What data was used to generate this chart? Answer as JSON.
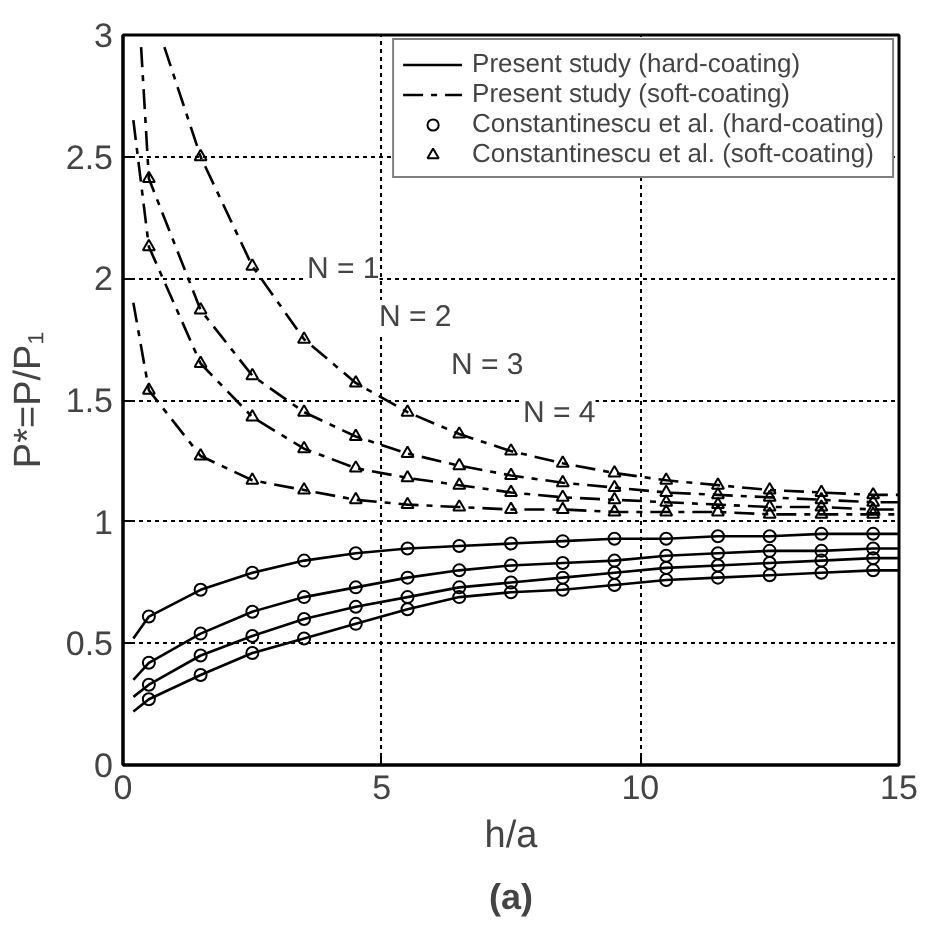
{
  "chart_data": {
    "type": "line",
    "xlabel": "h/a",
    "ylabel": "P*=P/P₁",
    "xlim": [
      0,
      15
    ],
    "ylim": [
      0,
      3
    ],
    "xticks": [
      0,
      5,
      10,
      15
    ],
    "yticks": [
      0,
      0.5,
      1,
      1.5,
      2,
      2.5,
      3
    ],
    "grid": true,
    "legend": "top right",
    "series": [
      {
        "name": "Present study (hard-coating)",
        "color": "#000000",
        "line_style": "solid",
        "x": [
          0.2,
          0.5,
          1.5,
          2.5,
          3.5,
          4.5,
          5.5,
          6.5,
          7.5,
          8.5,
          9.5,
          10.5,
          11.5,
          12.5,
          13.5,
          14.5,
          15
        ],
        "values": [
          0.52,
          0.61,
          0.72,
          0.79,
          0.84,
          0.87,
          0.89,
          0.9,
          0.91,
          0.92,
          0.93,
          0.93,
          0.94,
          0.94,
          0.95,
          0.95,
          0.95
        ]
      },
      {
        "color": "#000000",
        "line_style": "solid",
        "x": [
          0.2,
          0.5,
          1.5,
          2.5,
          3.5,
          4.5,
          5.5,
          6.5,
          7.5,
          8.5,
          9.5,
          10.5,
          11.5,
          12.5,
          13.5,
          14.5,
          15
        ],
        "values": [
          0.35,
          0.42,
          0.54,
          0.63,
          0.69,
          0.73,
          0.77,
          0.8,
          0.82,
          0.83,
          0.84,
          0.86,
          0.87,
          0.88,
          0.88,
          0.89,
          0.89
        ]
      },
      {
        "color": "#000000",
        "line_style": "solid",
        "x": [
          0.2,
          0.5,
          1.5,
          2.5,
          3.5,
          4.5,
          5.5,
          6.5,
          7.5,
          8.5,
          9.5,
          10.5,
          11.5,
          12.5,
          13.5,
          14.5,
          15
        ],
        "values": [
          0.28,
          0.33,
          0.45,
          0.53,
          0.6,
          0.65,
          0.69,
          0.73,
          0.75,
          0.77,
          0.79,
          0.81,
          0.82,
          0.83,
          0.84,
          0.85,
          0.85
        ]
      },
      {
        "color": "#000000",
        "line_style": "solid",
        "x": [
          0.2,
          0.5,
          1.5,
          2.5,
          3.5,
          4.5,
          5.5,
          6.5,
          7.5,
          8.5,
          9.5,
          10.5,
          11.5,
          12.5,
          13.5,
          14.5,
          15
        ],
        "values": [
          0.22,
          0.27,
          0.37,
          0.46,
          0.52,
          0.58,
          0.64,
          0.69,
          0.71,
          0.72,
          0.74,
          0.76,
          0.77,
          0.78,
          0.79,
          0.8,
          0.8
        ]
      },
      {
        "name": "Present study (soft-coating)",
        "color": "#000000",
        "line_style": "dashed",
        "x": [
          0.2,
          0.5,
          1.5,
          2.5,
          3.5,
          4.5,
          5.5,
          6.5,
          7.5,
          8.5,
          9.5,
          10.5,
          11.5,
          12.5,
          13.5,
          14.5,
          15
        ],
        "values": [
          1.9,
          1.54,
          1.27,
          1.17,
          1.13,
          1.09,
          1.07,
          1.06,
          1.05,
          1.05,
          1.04,
          1.04,
          1.04,
          1.03,
          1.03,
          1.03,
          1.03
        ]
      },
      {
        "color": "#000000",
        "line_style": "dashed",
        "x": [
          0.2,
          0.5,
          1.5,
          2.5,
          3.5,
          4.5,
          5.5,
          6.5,
          7.5,
          8.5,
          9.5,
          10.5,
          11.5,
          12.5,
          13.5,
          14.5,
          15
        ],
        "values": [
          2.65,
          2.13,
          1.65,
          1.43,
          1.3,
          1.22,
          1.18,
          1.15,
          1.12,
          1.1,
          1.09,
          1.08,
          1.07,
          1.06,
          1.06,
          1.05,
          1.05
        ]
      },
      {
        "color": "#000000",
        "line_style": "dashed",
        "x": [
          0.35,
          0.5,
          1.5,
          2.5,
          3.5,
          4.5,
          5.5,
          6.5,
          7.5,
          8.5,
          9.5,
          10.5,
          11.5,
          12.5,
          13.5,
          14.5,
          15
        ],
        "values": [
          2.95,
          2.41,
          1.87,
          1.6,
          1.45,
          1.35,
          1.28,
          1.23,
          1.19,
          1.16,
          1.14,
          1.12,
          1.11,
          1.1,
          1.09,
          1.08,
          1.08
        ]
      },
      {
        "color": "#000000",
        "line_style": "dashed",
        "x": [
          0.8,
          1.5,
          2.5,
          3.5,
          4.5,
          5.5,
          6.5,
          7.5,
          8.5,
          9.5,
          10.5,
          11.5,
          12.5,
          13.5,
          14.5,
          15
        ],
        "values": [
          2.95,
          2.5,
          2.05,
          1.75,
          1.57,
          1.45,
          1.36,
          1.29,
          1.24,
          1.2,
          1.17,
          1.15,
          1.13,
          1.12,
          1.11,
          1.11
        ]
      },
      {
        "name": "Constantinescu et al. (hard-coating)",
        "type": "scatter",
        "marker": "circle",
        "color": "#000000",
        "x": [
          0.5,
          1.5,
          2.5,
          3.5,
          4.5,
          5.5,
          6.5,
          7.5,
          8.5,
          9.5,
          10.5,
          11.5,
          12.5,
          13.5,
          14.5
        ],
        "values": [
          0.61,
          0.72,
          0.79,
          0.84,
          0.87,
          0.89,
          0.9,
          0.91,
          0.92,
          0.93,
          0.93,
          0.94,
          0.94,
          0.95,
          0.95
        ]
      },
      {
        "type": "scatter",
        "marker": "circle",
        "color": "#000000",
        "x": [
          0.5,
          1.5,
          2.5,
          3.5,
          4.5,
          5.5,
          6.5,
          7.5,
          8.5,
          9.5,
          10.5,
          11.5,
          12.5,
          13.5,
          14.5
        ],
        "values": [
          0.42,
          0.54,
          0.63,
          0.69,
          0.73,
          0.77,
          0.8,
          0.82,
          0.83,
          0.84,
          0.86,
          0.87,
          0.88,
          0.88,
          0.89
        ]
      },
      {
        "type": "scatter",
        "marker": "circle",
        "color": "#000000",
        "x": [
          0.5,
          1.5,
          2.5,
          3.5,
          4.5,
          5.5,
          6.5,
          7.5,
          8.5,
          9.5,
          10.5,
          11.5,
          12.5,
          13.5,
          14.5
        ],
        "values": [
          0.33,
          0.45,
          0.53,
          0.6,
          0.65,
          0.69,
          0.73,
          0.75,
          0.77,
          0.79,
          0.81,
          0.82,
          0.83,
          0.84,
          0.85
        ]
      },
      {
        "type": "scatter",
        "marker": "circle",
        "color": "#000000",
        "x": [
          0.5,
          1.5,
          2.5,
          3.5,
          4.5,
          5.5,
          6.5,
          7.5,
          8.5,
          9.5,
          10.5,
          11.5,
          12.5,
          13.5,
          14.5
        ],
        "values": [
          0.27,
          0.37,
          0.46,
          0.52,
          0.58,
          0.64,
          0.69,
          0.71,
          0.72,
          0.74,
          0.76,
          0.77,
          0.78,
          0.79,
          0.8
        ]
      },
      {
        "name": "Constantinescu et al. (soft-coating)",
        "type": "scatter",
        "marker": "triangle",
        "color": "#000000",
        "x": [
          0.5,
          1.5,
          2.5,
          3.5,
          4.5,
          5.5,
          6.5,
          7.5,
          8.5,
          9.5,
          10.5,
          11.5,
          12.5,
          13.5,
          14.5
        ],
        "values": [
          1.54,
          1.27,
          1.17,
          1.13,
          1.09,
          1.07,
          1.06,
          1.05,
          1.05,
          1.04,
          1.04,
          1.04,
          1.03,
          1.03,
          1.03
        ]
      },
      {
        "type": "scatter",
        "marker": "triangle",
        "color": "#000000",
        "x": [
          0.5,
          1.5,
          2.5,
          3.5,
          4.5,
          5.5,
          6.5,
          7.5,
          8.5,
          9.5,
          10.5,
          11.5,
          12.5,
          13.5,
          14.5
        ],
        "values": [
          2.13,
          1.65,
          1.43,
          1.3,
          1.22,
          1.18,
          1.15,
          1.12,
          1.1,
          1.09,
          1.08,
          1.07,
          1.06,
          1.06,
          1.05
        ]
      },
      {
        "type": "scatter",
        "marker": "triangle",
        "color": "#000000",
        "x": [
          0.5,
          1.5,
          2.5,
          3.5,
          4.5,
          5.5,
          6.5,
          7.5,
          8.5,
          9.5,
          10.5,
          11.5,
          12.5,
          13.5,
          14.5
        ],
        "values": [
          2.41,
          1.87,
          1.6,
          1.45,
          1.35,
          1.28,
          1.23,
          1.19,
          1.16,
          1.14,
          1.12,
          1.11,
          1.1,
          1.09,
          1.08
        ]
      },
      {
        "type": "scatter",
        "marker": "triangle",
        "color": "#000000",
        "x": [
          1.5,
          2.5,
          3.5,
          4.5,
          5.5,
          6.5,
          7.5,
          8.5,
          9.5,
          10.5,
          11.5,
          12.5,
          13.5,
          14.5
        ],
        "values": [
          2.5,
          2.05,
          1.75,
          1.57,
          1.45,
          1.36,
          1.29,
          1.24,
          1.2,
          1.17,
          1.15,
          1.13,
          1.12,
          1.11
        ]
      }
    ],
    "annotations": [
      "N = 1",
      "N = 2",
      "N = 3",
      "N = 4",
      "(a)"
    ]
  }
}
